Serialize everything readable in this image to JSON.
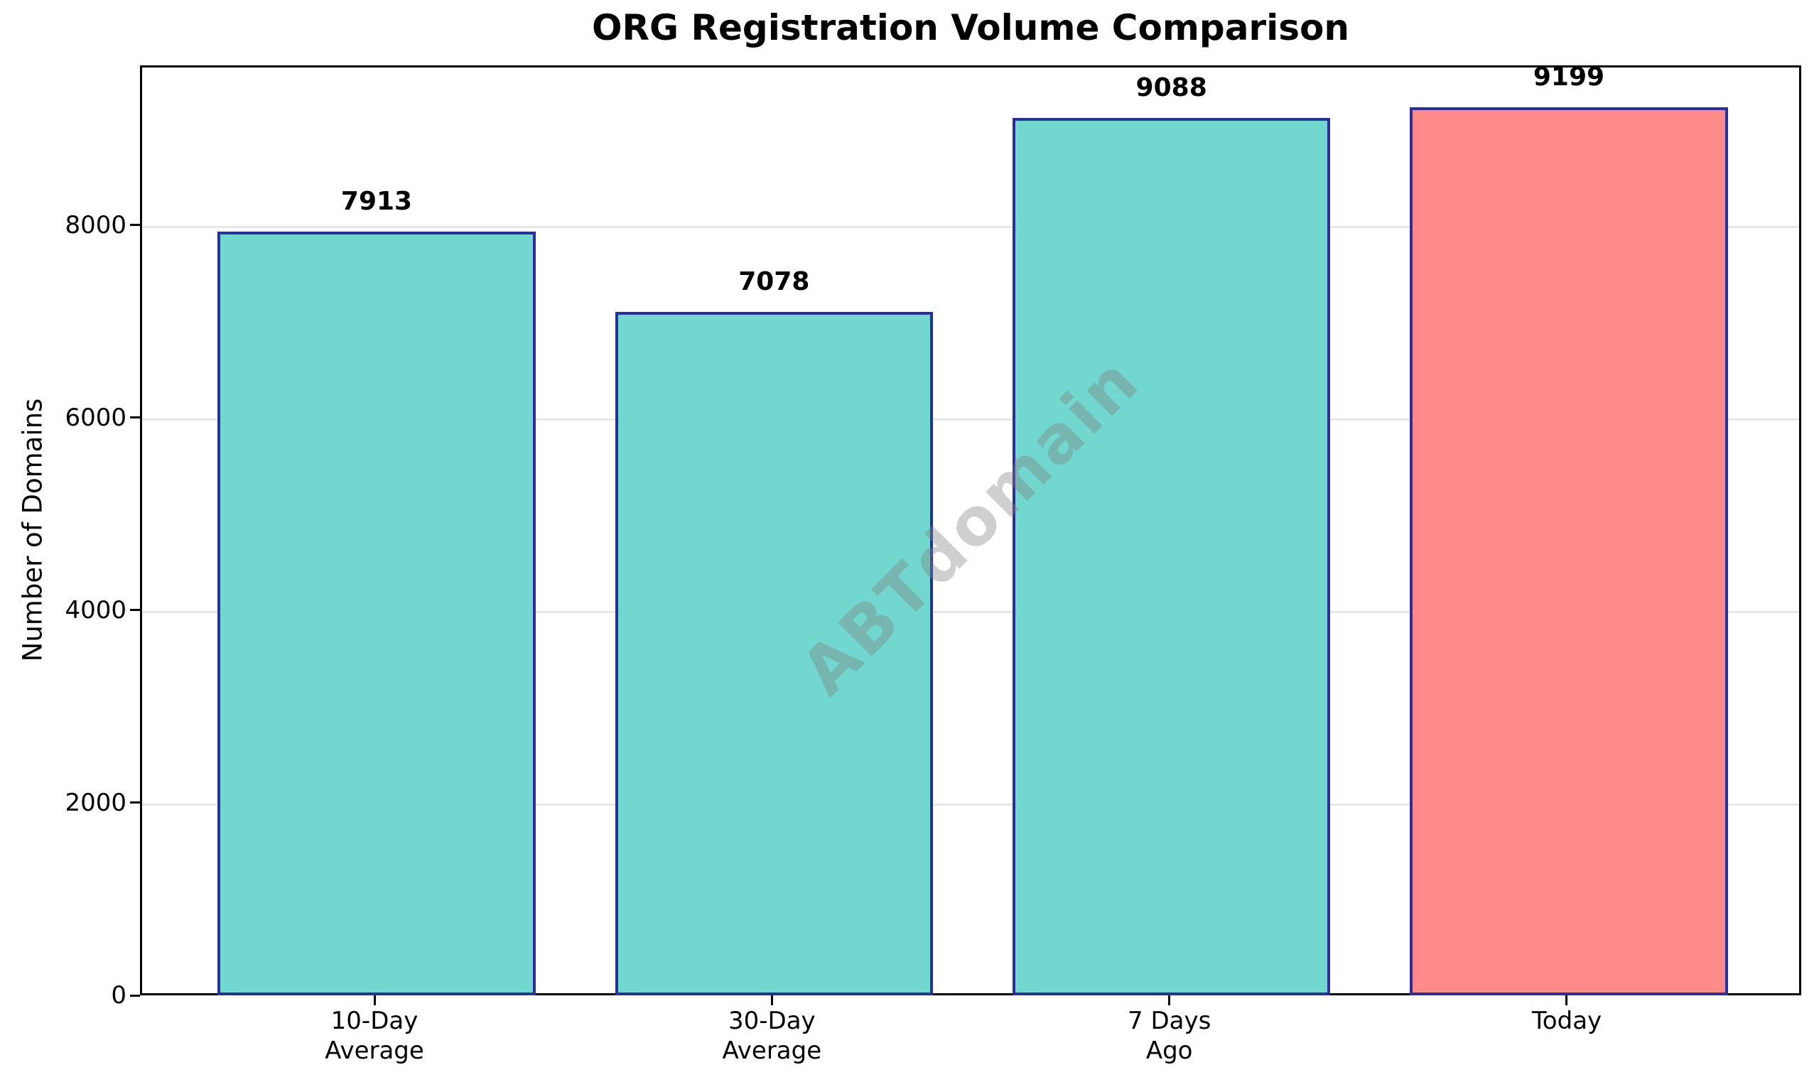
{
  "chart_data": {
    "type": "bar",
    "title": "ORG Registration Volume Comparison",
    "ylabel": "Number of Domains",
    "xlabel": "",
    "categories": [
      "10-Day\nAverage",
      "30-Day\nAverage",
      "7 Days\nAgo",
      "Today"
    ],
    "values": [
      7913,
      7078,
      9088,
      9199
    ],
    "bar_colors": [
      "#72d7ce",
      "#72d7ce",
      "#72d7ce",
      "#ff8a8a"
    ],
    "bar_edge_color": "#2a2f9c",
    "yticks": [
      0,
      2000,
      4000,
      6000,
      8000
    ],
    "ylim": [
      0,
      9659
    ],
    "x_axis_units": 4.18,
    "bar_width_units": 0.8,
    "first_bar_center_units": 0.59,
    "grid": "horizontal",
    "grid_color": "#e7e7e7",
    "legend": "none",
    "watermark": "ABTdomain",
    "watermark_color": "rgba(128,128,128,0.38)"
  }
}
